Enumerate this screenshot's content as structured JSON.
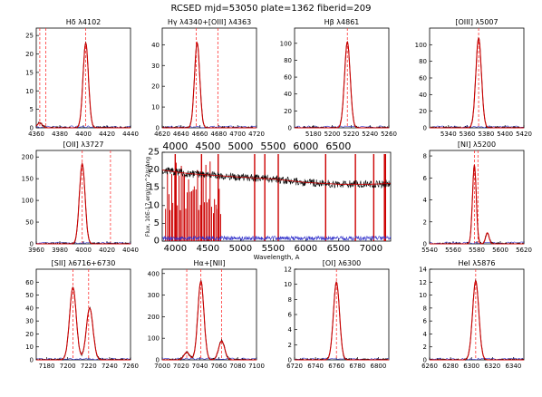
{
  "figure_title": "RCSED mjd=53050 plate=1362 fiberid=209",
  "colors": {
    "observed": "#000000",
    "model": "#cc0000",
    "residual": "#3333cc",
    "marker": "#ff3333"
  },
  "chart_data": [
    {
      "type": "line",
      "title": "Hδ λ4102",
      "xlim": [
        4360,
        4440
      ],
      "ylim": [
        0,
        27
      ],
      "xticks": [
        "4360",
        "4380",
        "4400",
        "4420",
        "4440"
      ],
      "yticks": [
        "0",
        "5",
        "10",
        "15",
        "20",
        "25"
      ],
      "markers": [
        4363,
        4368,
        4402
      ],
      "peak": {
        "center": 4402,
        "amp": 23,
        "sigma": 2.3
      },
      "extra_peaks": [
        {
          "center": 4363,
          "amp": 1.4,
          "sigma": 2.0
        }
      ]
    },
    {
      "type": "line",
      "title": "Hγ λ4340+[OIII] λ4363",
      "xlim": [
        4620,
        4720
      ],
      "ylim": [
        0,
        48
      ],
      "xticks": [
        "4620",
        "4640",
        "4660",
        "4680",
        "4700",
        "4720"
      ],
      "yticks": [
        "0",
        "10",
        "20",
        "30",
        "40"
      ],
      "markers": [
        4656,
        4679
      ],
      "peak": {
        "center": 4657,
        "amp": 41,
        "sigma": 2.8
      }
    },
    {
      "type": "line",
      "title": "Hβ λ4861",
      "xlim": [
        5160,
        5260
      ],
      "ylim": [
        0,
        118
      ],
      "xticks": [
        "5180",
        "5200",
        "5220",
        "5240",
        "5260"
      ],
      "yticks": [
        "0",
        "20",
        "40",
        "60",
        "80",
        "100"
      ],
      "markers": [
        5216
      ],
      "peak": {
        "center": 5216,
        "amp": 102,
        "sigma": 3.0
      }
    },
    {
      "type": "line",
      "title": "[OIII] λ5007",
      "xlim": [
        5320,
        5420
      ],
      "ylim": [
        0,
        120
      ],
      "xticks": [
        "5340",
        "5360",
        "5380",
        "5400",
        "5420"
      ],
      "yticks": [
        "0",
        "20",
        "40",
        "60",
        "80",
        "100"
      ],
      "markers": [
        5372
      ],
      "peak": {
        "center": 5372,
        "amp": 108,
        "sigma": 3.0
      }
    },
    {
      "type": "line",
      "title": "[OII] λ3727",
      "xlim": [
        3960,
        4040
      ],
      "ylim": [
        0,
        215
      ],
      "xticks": [
        "3960",
        "3980",
        "4000",
        "4020",
        "4040"
      ],
      "yticks": [
        "0",
        "50",
        "100",
        "150",
        "200"
      ],
      "markers": [
        3999,
        4023
      ],
      "peak": {
        "center": 3999,
        "amp": 185,
        "sigma": 2.4
      }
    },
    {
      "type": "line",
      "title": "[NI] λ5200",
      "xlim": [
        5540,
        5620
      ],
      "ylim": [
        0,
        8.5
      ],
      "xticks": [
        "5540",
        "5560",
        "5580",
        "5600",
        "5620"
      ],
      "yticks": [
        "0",
        "2",
        "4",
        "6",
        "8"
      ],
      "markers": [
        5578,
        5581
      ],
      "peak": {
        "center": 5578,
        "amp": 7.2,
        "sigma": 1.6
      },
      "extra_peaks": [
        {
          "center": 5589,
          "amp": 1.0,
          "sigma": 1.5
        }
      ]
    },
    {
      "type": "line",
      "title": "[SII] λ6716+6730",
      "xlim": [
        7170,
        7260
      ],
      "ylim": [
        0,
        70
      ],
      "xticks": [
        "7180",
        "7200",
        "7220",
        "7240",
        "7260"
      ],
      "yticks": [
        "0",
        "10",
        "20",
        "30",
        "40",
        "50",
        "60"
      ],
      "markers": [
        7205,
        7220
      ],
      "peak": {
        "center": 7205,
        "amp": 56,
        "sigma": 3.2
      },
      "extra_peaks": [
        {
          "center": 7221,
          "amp": 40,
          "sigma": 3.2
        }
      ]
    },
    {
      "type": "line",
      "title": "Hα+[NII]",
      "xlim": [
        7000,
        7100
      ],
      "ylim": [
        0,
        420
      ],
      "xticks": [
        "7000",
        "7020",
        "7040",
        "7060",
        "7080",
        "7100"
      ],
      "yticks": [
        "0",
        "100",
        "200",
        "300",
        "400"
      ],
      "markers": [
        7026,
        7041,
        7063
      ],
      "peak": {
        "center": 7041,
        "amp": 365,
        "sigma": 3.2
      },
      "extra_peaks": [
        {
          "center": 7026,
          "amp": 35,
          "sigma": 3.0
        },
        {
          "center": 7063,
          "amp": 88,
          "sigma": 3.2
        }
      ]
    },
    {
      "type": "line",
      "title": "[OI] λ6300",
      "xlim": [
        6720,
        6810
      ],
      "ylim": [
        0,
        12
      ],
      "xticks": [
        "6720",
        "6740",
        "6760",
        "6780",
        "6800"
      ],
      "yticks": [
        "0",
        "2",
        "4",
        "6",
        "8",
        "10",
        "12"
      ],
      "markers": [
        6760
      ],
      "peak": {
        "center": 6760,
        "amp": 10.3,
        "sigma": 2.9
      }
    },
    {
      "type": "line",
      "title": "HeI λ5876",
      "xlim": [
        6260,
        6350
      ],
      "ylim": [
        0,
        14
      ],
      "xticks": [
        "6260",
        "6280",
        "6300",
        "6320",
        "6340"
      ],
      "yticks": [
        "0",
        "2",
        "4",
        "6",
        "8",
        "10",
        "12",
        "14"
      ],
      "markers": [
        6304
      ],
      "peak": {
        "center": 6304,
        "amp": 12.2,
        "sigma": 3.0
      }
    },
    {
      "type": "line",
      "title": "",
      "xlabel": "Wavelength, A",
      "ylabel": "Flux, 10E-17 erg/cm^2/s/Ang",
      "xlim": [
        3800,
        7300
      ],
      "ylim": [
        0,
        25
      ],
      "xticks": [
        "4000",
        "4500",
        "5000",
        "5500",
        "6000",
        "6500",
        "7000"
      ],
      "xticks_top": [
        "4000",
        "4500",
        "5000",
        "5500",
        "6000",
        "6500"
      ],
      "yticks": [
        "0",
        "5",
        "10",
        "15",
        "20",
        "25"
      ],
      "continuum": {
        "x": [
          3800,
          4200,
          4600,
          5000,
          5500,
          6000,
          6500,
          7000,
          7300
        ],
        "y": [
          20,
          19,
          18.5,
          18,
          17.5,
          16.5,
          16,
          16,
          16.2
        ]
      },
      "emission_lines": [
        3999,
        4402,
        4657,
        5216,
        5372,
        5578,
        6304,
        6760,
        7041,
        7205,
        7221
      ]
    }
  ]
}
